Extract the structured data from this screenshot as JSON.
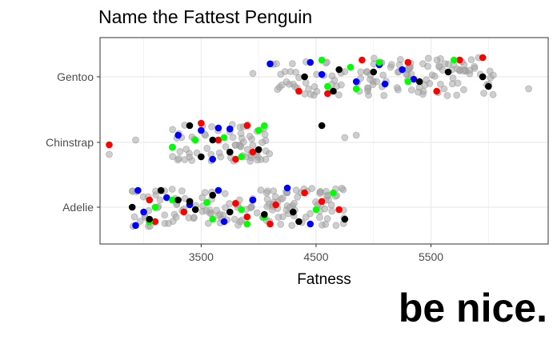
{
  "chart_data": {
    "type": "scatter",
    "title": "Name the Fattest Penguin",
    "xlabel": "Fatness",
    "ylabel": "",
    "xlim": [
      2620,
      6520
    ],
    "x_ticks": [
      3500,
      4500,
      5500
    ],
    "categories": [
      "Adelie",
      "Chinstrap",
      "Gentoo"
    ],
    "grid": true,
    "legend": "none",
    "colors": {
      "background": "#a6a6a6",
      "red": "#ff0000",
      "blue": "#0000ff",
      "green": "#00ff00",
      "black": "#000000"
    },
    "series": [
      {
        "color": "red",
        "points": [
          {
            "cat": "Adelie",
            "x": 3050,
            "j": 0.15
          },
          {
            "cat": "Adelie",
            "x": 3350,
            "j": -0.1
          },
          {
            "cat": "Adelie",
            "x": 3800,
            "j": 0.08
          },
          {
            "cat": "Adelie",
            "x": 3900,
            "j": -0.2
          },
          {
            "cat": "Adelie",
            "x": 4150,
            "j": 0.05
          },
          {
            "cat": "Adelie",
            "x": 4400,
            "j": 0.3
          },
          {
            "cat": "Adelie",
            "x": 4550,
            "j": 0.12
          },
          {
            "cat": "Adelie",
            "x": 4700,
            "j": -0.05
          },
          {
            "cat": "Adelie",
            "x": 3100,
            "j": -0.3
          },
          {
            "cat": "Adelie",
            "x": 4100,
            "j": -0.35
          },
          {
            "cat": "Chinstrap",
            "x": 2700,
            "j": -0.05
          },
          {
            "cat": "Chinstrap",
            "x": 3500,
            "j": 0.4
          },
          {
            "cat": "Chinstrap",
            "x": 3650,
            "j": 0.05
          },
          {
            "cat": "Chinstrap",
            "x": 3900,
            "j": 0.35
          },
          {
            "cat": "Chinstrap",
            "x": 3950,
            "j": -0.2
          },
          {
            "cat": "Chinstrap",
            "x": 3800,
            "j": -0.35
          },
          {
            "cat": "Gentoo",
            "x": 4350,
            "j": -0.3
          },
          {
            "cat": "Gentoo",
            "x": 4600,
            "j": -0.35
          },
          {
            "cat": "Gentoo",
            "x": 4900,
            "j": 0.35
          },
          {
            "cat": "Gentoo",
            "x": 5300,
            "j": 0.3
          },
          {
            "cat": "Gentoo",
            "x": 5550,
            "j": -0.3
          },
          {
            "cat": "Gentoo",
            "x": 5750,
            "j": 0.35
          },
          {
            "cat": "Gentoo",
            "x": 5950,
            "j": 0.4
          }
        ]
      },
      {
        "color": "blue",
        "points": [
          {
            "cat": "Adelie",
            "x": 2950,
            "j": 0.35
          },
          {
            "cat": "Adelie",
            "x": 3000,
            "j": -0.1
          },
          {
            "cat": "Adelie",
            "x": 3200,
            "j": 0.2
          },
          {
            "cat": "Adelie",
            "x": 3400,
            "j": 0.05
          },
          {
            "cat": "Adelie",
            "x": 3650,
            "j": 0.35
          },
          {
            "cat": "Adelie",
            "x": 3700,
            "j": -0.3
          },
          {
            "cat": "Adelie",
            "x": 3950,
            "j": 0.15
          },
          {
            "cat": "Adelie",
            "x": 4250,
            "j": 0.4
          },
          {
            "cat": "Adelie",
            "x": 4450,
            "j": -0.35
          },
          {
            "cat": "Adelie",
            "x": 2930,
            "j": -0.38
          },
          {
            "cat": "Chinstrap",
            "x": 3300,
            "j": 0.15
          },
          {
            "cat": "Chinstrap",
            "x": 3500,
            "j": 0.25
          },
          {
            "cat": "Chinstrap",
            "x": 3650,
            "j": 0.3
          },
          {
            "cat": "Chinstrap",
            "x": 3750,
            "j": 0.28
          },
          {
            "cat": "Chinstrap",
            "x": 3600,
            "j": -0.35
          },
          {
            "cat": "Chinstrap",
            "x": 3250,
            "j": -0.1
          },
          {
            "cat": "Gentoo",
            "x": 4450,
            "j": 0.3
          },
          {
            "cat": "Gentoo",
            "x": 4550,
            "j": 0.05
          },
          {
            "cat": "Gentoo",
            "x": 4850,
            "j": -0.1
          },
          {
            "cat": "Gentoo",
            "x": 5100,
            "j": -0.15
          },
          {
            "cat": "Gentoo",
            "x": 5350,
            "j": -0.05
          },
          {
            "cat": "Gentoo",
            "x": 5050,
            "j": 0.25
          },
          {
            "cat": "Gentoo",
            "x": 5250,
            "j": 0.15
          },
          {
            "cat": "Gentoo",
            "x": 4100,
            "j": 0.27
          }
        ]
      },
      {
        "color": "green",
        "points": [
          {
            "cat": "Adelie",
            "x": 3100,
            "j": 0.0
          },
          {
            "cat": "Adelie",
            "x": 3250,
            "j": 0.15
          },
          {
            "cat": "Adelie",
            "x": 3550,
            "j": 0.1
          },
          {
            "cat": "Adelie",
            "x": 3850,
            "j": -0.05
          },
          {
            "cat": "Adelie",
            "x": 4050,
            "j": -0.2
          },
          {
            "cat": "Adelie",
            "x": 4500,
            "j": -0.05
          },
          {
            "cat": "Adelie",
            "x": 4650,
            "j": 0.3
          },
          {
            "cat": "Adelie",
            "x": 3600,
            "j": -0.25
          },
          {
            "cat": "Adelie",
            "x": 3900,
            "j": -0.35
          },
          {
            "cat": "Adelie",
            "x": 3050,
            "j": -0.3
          },
          {
            "cat": "Chinstrap",
            "x": 3250,
            "j": -0.1
          },
          {
            "cat": "Chinstrap",
            "x": 3450,
            "j": 0.05
          },
          {
            "cat": "Chinstrap",
            "x": 3700,
            "j": 0.1
          },
          {
            "cat": "Chinstrap",
            "x": 4050,
            "j": 0.35
          },
          {
            "cat": "Chinstrap",
            "x": 4000,
            "j": 0.25
          },
          {
            "cat": "Chinstrap",
            "x": 3850,
            "j": -0.3
          },
          {
            "cat": "Gentoo",
            "x": 4550,
            "j": 0.35
          },
          {
            "cat": "Gentoo",
            "x": 4800,
            "j": 0.2
          },
          {
            "cat": "Gentoo",
            "x": 5050,
            "j": 0.3
          },
          {
            "cat": "Gentoo",
            "x": 5300,
            "j": -0.1
          },
          {
            "cat": "Gentoo",
            "x": 5700,
            "j": 0.35
          },
          {
            "cat": "Gentoo",
            "x": 4600,
            "j": -0.2
          },
          {
            "cat": "Gentoo",
            "x": 4850,
            "j": -0.25
          }
        ]
      },
      {
        "color": "black",
        "points": [
          {
            "cat": "Adelie",
            "x": 2900,
            "j": 0.0
          },
          {
            "cat": "Adelie",
            "x": 3050,
            "j": -0.25
          },
          {
            "cat": "Adelie",
            "x": 3300,
            "j": 0.15
          },
          {
            "cat": "Adelie",
            "x": 3400,
            "j": 0.12
          },
          {
            "cat": "Adelie",
            "x": 3600,
            "j": 0.25
          },
          {
            "cat": "Adelie",
            "x": 3750,
            "j": -0.1
          },
          {
            "cat": "Adelie",
            "x": 4050,
            "j": -0.15
          },
          {
            "cat": "Adelie",
            "x": 4300,
            "j": -0.1
          },
          {
            "cat": "Adelie",
            "x": 4350,
            "j": -0.3
          },
          {
            "cat": "Adelie",
            "x": 4750,
            "j": -0.25
          },
          {
            "cat": "Adelie",
            "x": 3450,
            "j": -0.05
          },
          {
            "cat": "Adelie",
            "x": 3150,
            "j": 0.35
          },
          {
            "cat": "Chinstrap",
            "x": 3400,
            "j": 0.35
          },
          {
            "cat": "Chinstrap",
            "x": 3600,
            "j": 0.05
          },
          {
            "cat": "Chinstrap",
            "x": 3750,
            "j": -0.2
          },
          {
            "cat": "Chinstrap",
            "x": 4000,
            "j": -0.15
          },
          {
            "cat": "Chinstrap",
            "x": 4550,
            "j": 0.35
          },
          {
            "cat": "Chinstrap",
            "x": 3500,
            "j": -0.3
          },
          {
            "cat": "Gentoo",
            "x": 4400,
            "j": 0.0
          },
          {
            "cat": "Gentoo",
            "x": 4700,
            "j": 0.15
          },
          {
            "cat": "Gentoo",
            "x": 5000,
            "j": 0.1
          },
          {
            "cat": "Gentoo",
            "x": 5400,
            "j": -0.1
          },
          {
            "cat": "Gentoo",
            "x": 5650,
            "j": 0.1
          },
          {
            "cat": "Gentoo",
            "x": 5950,
            "j": 0.0
          },
          {
            "cat": "Gentoo",
            "x": 6000,
            "j": -0.2
          },
          {
            "cat": "Gentoo",
            "x": 4650,
            "j": -0.3
          }
        ]
      }
    ]
  },
  "footer": {
    "text": "be nice."
  }
}
